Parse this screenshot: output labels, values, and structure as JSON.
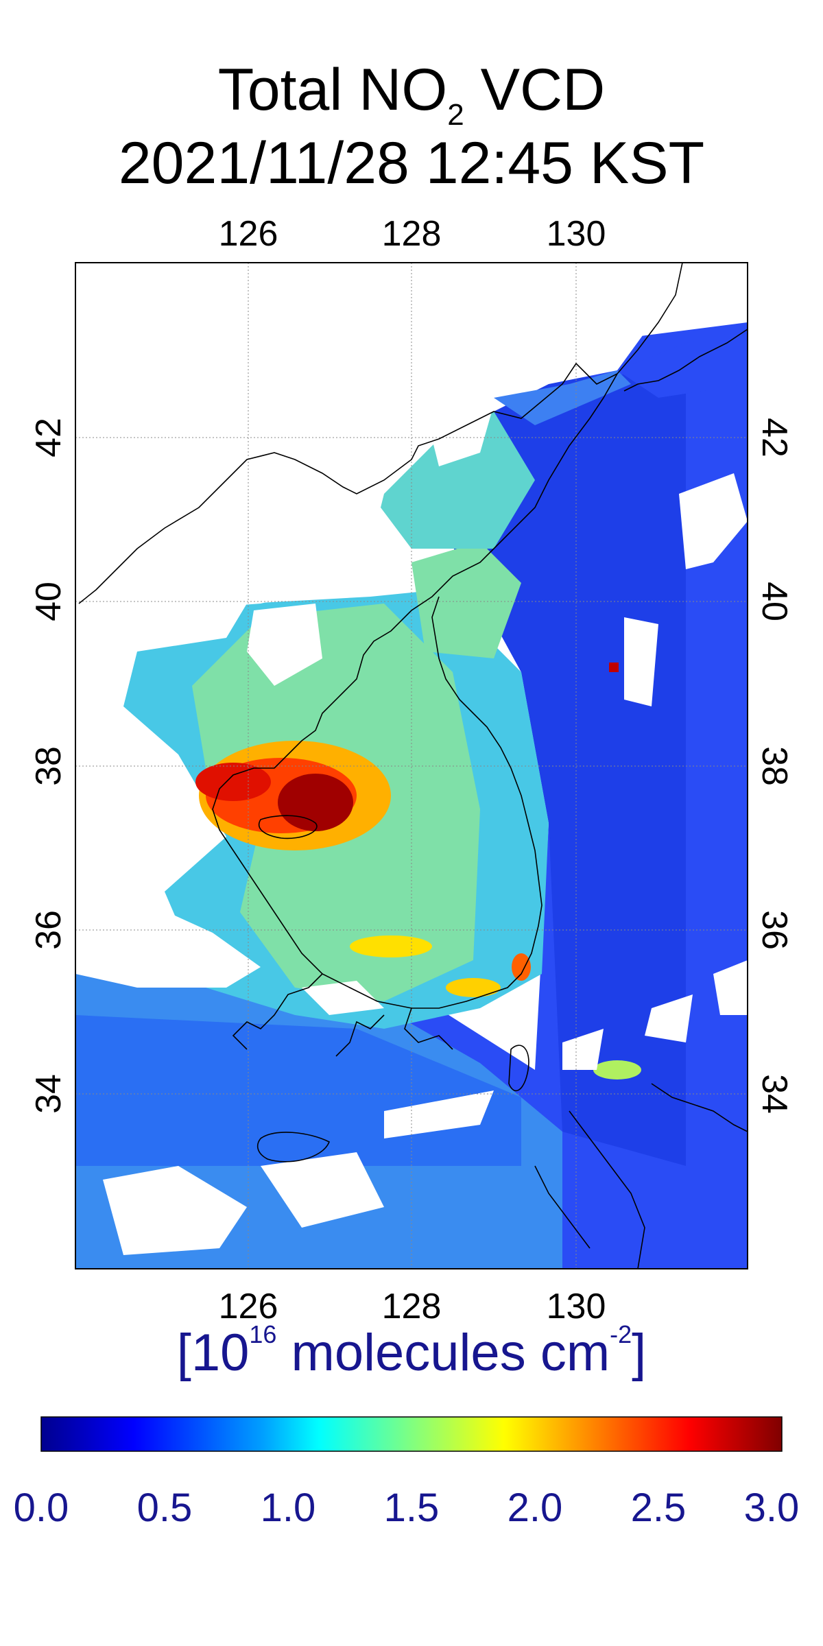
{
  "title": {
    "line1_pre": "Total NO",
    "line1_sub": "2",
    "line1_post": " VCD",
    "line2": "2021/11/28 12:45 KST"
  },
  "map": {
    "lon_ticks": [
      "126",
      "128",
      "130"
    ],
    "lat_ticks": [
      "34",
      "36",
      "38",
      "40",
      "42"
    ],
    "lon_range": [
      124,
      132.2
    ],
    "lat_range": [
      32,
      44.2
    ],
    "gridlines": true
  },
  "colorbar": {
    "unit_pre": "[10",
    "unit_exp": "16",
    "unit_mid": " molecules cm",
    "unit_exp2": "-2",
    "unit_post": "]",
    "ticks": [
      "0.0",
      "0.5",
      "1.0",
      "1.5",
      "2.0",
      "2.5",
      "3.0"
    ],
    "range": [
      0,
      3
    ],
    "colors": [
      "#00008f",
      "#0000ff",
      "#00a0ff",
      "#00ffff",
      "#80ff80",
      "#ffff00",
      "#ff8000",
      "#ff0000",
      "#800000"
    ]
  }
}
